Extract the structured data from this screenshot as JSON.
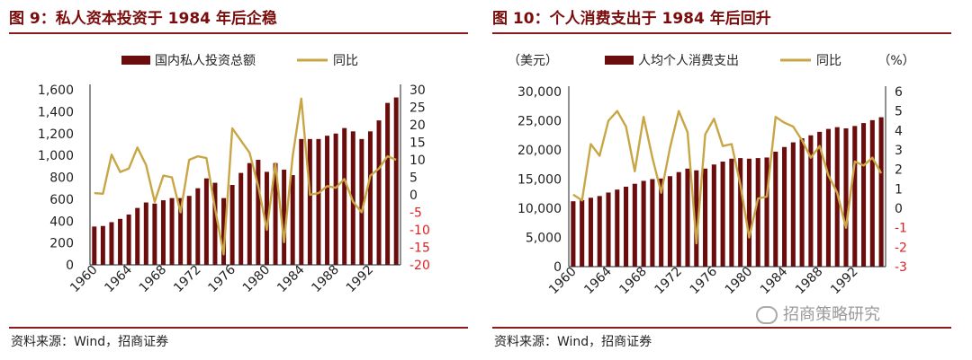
{
  "colors": {
    "bar": "#6b0d0d",
    "line": "#c9a645",
    "title": "#7a0c0c",
    "negative": "#e02020",
    "axis": "#222222"
  },
  "source_text": "资料来源：Wind，招商证券",
  "watermark": "招商策略研究",
  "chart_data": [
    {
      "type": "bar+line",
      "title": "图 9：私人资本投资于 1984 年后企稳",
      "left_unit": "",
      "right_unit": "",
      "legend": {
        "bar": "国内私人投资总额",
        "line": "同比"
      },
      "x_labels": [
        "1960",
        "1964",
        "1968",
        "1972",
        "1976",
        "1980",
        "1984",
        "1988",
        "1992"
      ],
      "y_left": {
        "min": 0,
        "max": 1600,
        "step": 200
      },
      "y_right": {
        "min": -20,
        "max": 30,
        "step": 5
      },
      "x": [
        1960,
        1961,
        1962,
        1963,
        1964,
        1965,
        1966,
        1967,
        1968,
        1969,
        1970,
        1971,
        1972,
        1973,
        1974,
        1975,
        1976,
        1977,
        1978,
        1979,
        1980,
        1981,
        1982,
        1983,
        1984,
        1985,
        1986,
        1987,
        1988,
        1989,
        1990,
        1991,
        1992,
        1993,
        1994,
        1995
      ],
      "bar_values": [
        350,
        355,
        390,
        420,
        460,
        520,
        570,
        560,
        590,
        610,
        610,
        630,
        700,
        790,
        750,
        610,
        730,
        840,
        930,
        960,
        850,
        930,
        870,
        820,
        1150,
        1150,
        1150,
        1180,
        1200,
        1250,
        1220,
        1150,
        1220,
        1320,
        1480,
        1530
      ],
      "line_values": [
        0.5,
        0.3,
        11.5,
        6.5,
        7.5,
        13.5,
        8.5,
        -2,
        5.5,
        5,
        -5,
        10,
        11,
        10.5,
        -4,
        -17,
        19,
        15.5,
        12,
        2.5,
        -10,
        9,
        -13.5,
        11,
        27.5,
        0,
        0.5,
        2.5,
        2,
        4.5,
        -2,
        -5,
        5.5,
        7.5,
        11,
        10
      ]
    },
    {
      "type": "bar+line",
      "title": "图 10：个人消费支出于 1984 年后回升",
      "left_unit": "（美元）",
      "right_unit": "（%）",
      "legend": {
        "bar": "人均个人消费支出",
        "line": "同比"
      },
      "x_labels": [
        "1960",
        "1964",
        "1968",
        "1972",
        "1976",
        "1980",
        "1984",
        "1988",
        "1992"
      ],
      "y_left": {
        "min": 0,
        "max": 30000,
        "step": 5000
      },
      "y_right": {
        "min": -3,
        "max": 6,
        "step": 1
      },
      "x": [
        1960,
        1961,
        1962,
        1963,
        1964,
        1965,
        1966,
        1967,
        1968,
        1969,
        1970,
        1971,
        1972,
        1973,
        1974,
        1975,
        1976,
        1977,
        1978,
        1979,
        1980,
        1981,
        1982,
        1983,
        1984,
        1985,
        1986,
        1987,
        1988,
        1989,
        1990,
        1991,
        1992,
        1993,
        1994,
        1995
      ],
      "bar_values": [
        11200,
        11400,
        11800,
        12100,
        12700,
        13200,
        13700,
        14200,
        14700,
        15000,
        15100,
        15500,
        16200,
        16800,
        16500,
        16800,
        17500,
        18000,
        18500,
        18600,
        18500,
        18600,
        18700,
        19700,
        20500,
        21300,
        22000,
        22500,
        23100,
        23600,
        23900,
        23700,
        24100,
        24600,
        25100,
        25600
      ],
      "line_values": [
        0.7,
        0.4,
        3.3,
        2.7,
        4.5,
        5,
        4.2,
        1.9,
        4.7,
        2.6,
        0.8,
        3.1,
        5,
        3.9,
        -1.8,
        3.8,
        4.6,
        3.2,
        3.3,
        1.2,
        -1.5,
        0.5,
        0.6,
        4.7,
        4.4,
        4.2,
        3.5,
        2.6,
        3.2,
        1.7,
        0.8,
        -1,
        2.4,
        2.2,
        2.6,
        1.8
      ]
    }
  ]
}
